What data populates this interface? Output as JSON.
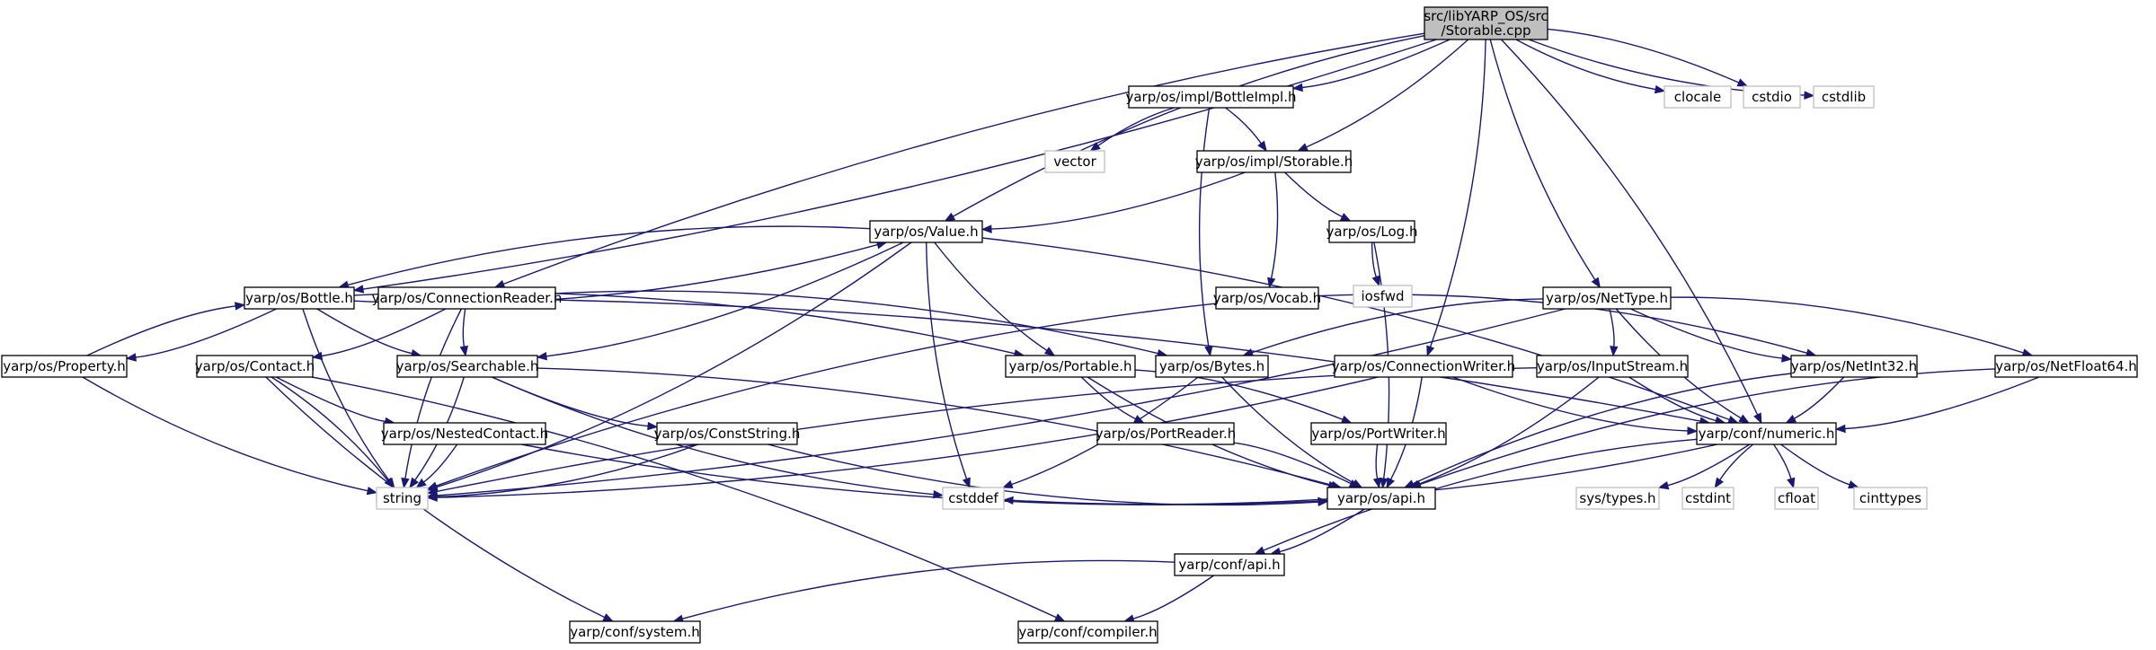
{
  "graph": {
    "nodes": [
      {
        "id": "storable_cpp",
        "lines": [
          "src/libYARP_OS/src",
          "/Storable.cpp"
        ],
        "kind": "root"
      },
      {
        "id": "bottleimpl",
        "lines": [
          "yarp/os/impl/BottleImpl.h"
        ],
        "kind": "file"
      },
      {
        "id": "clocale",
        "lines": [
          "clocale"
        ],
        "kind": "ext"
      },
      {
        "id": "cstdio",
        "lines": [
          "cstdio"
        ],
        "kind": "ext"
      },
      {
        "id": "cstdlib",
        "lines": [
          "cstdlib"
        ],
        "kind": "ext"
      },
      {
        "id": "vector",
        "lines": [
          "vector"
        ],
        "kind": "ext"
      },
      {
        "id": "impl_storable",
        "lines": [
          "yarp/os/impl/Storable.h"
        ],
        "kind": "file"
      },
      {
        "id": "value",
        "lines": [
          "yarp/os/Value.h"
        ],
        "kind": "file"
      },
      {
        "id": "log",
        "lines": [
          "yarp/os/Log.h"
        ],
        "kind": "file"
      },
      {
        "id": "iosfwd",
        "lines": [
          "iosfwd"
        ],
        "kind": "ext"
      },
      {
        "id": "bottle",
        "lines": [
          "yarp/os/Bottle.h"
        ],
        "kind": "file"
      },
      {
        "id": "connreader",
        "lines": [
          "yarp/os/ConnectionReader.h"
        ],
        "kind": "file"
      },
      {
        "id": "vocab",
        "lines": [
          "yarp/os/Vocab.h"
        ],
        "kind": "file"
      },
      {
        "id": "nettype",
        "lines": [
          "yarp/os/NetType.h"
        ],
        "kind": "file"
      },
      {
        "id": "property",
        "lines": [
          "yarp/os/Property.h"
        ],
        "kind": "file"
      },
      {
        "id": "contact",
        "lines": [
          "yarp/os/Contact.h"
        ],
        "kind": "file"
      },
      {
        "id": "searchable",
        "lines": [
          "yarp/os/Searchable.h"
        ],
        "kind": "file"
      },
      {
        "id": "portable",
        "lines": [
          "yarp/os/Portable.h"
        ],
        "kind": "file"
      },
      {
        "id": "bytes",
        "lines": [
          "yarp/os/Bytes.h"
        ],
        "kind": "file"
      },
      {
        "id": "connwriter",
        "lines": [
          "yarp/os/ConnectionWriter.h"
        ],
        "kind": "file"
      },
      {
        "id": "inputstream",
        "lines": [
          "yarp/os/InputStream.h"
        ],
        "kind": "file"
      },
      {
        "id": "netint32",
        "lines": [
          "yarp/os/NetInt32.h"
        ],
        "kind": "file"
      },
      {
        "id": "netfloat64",
        "lines": [
          "yarp/os/NetFloat64.h"
        ],
        "kind": "file"
      },
      {
        "id": "nestedcontact",
        "lines": [
          "yarp/os/NestedContact.h"
        ],
        "kind": "file"
      },
      {
        "id": "conststring",
        "lines": [
          "yarp/os/ConstString.h"
        ],
        "kind": "file"
      },
      {
        "id": "portreader",
        "lines": [
          "yarp/os/PortReader.h"
        ],
        "kind": "file"
      },
      {
        "id": "portwriter",
        "lines": [
          "yarp/os/PortWriter.h"
        ],
        "kind": "file"
      },
      {
        "id": "numeric",
        "lines": [
          "yarp/conf/numeric.h"
        ],
        "kind": "file"
      },
      {
        "id": "string",
        "lines": [
          "string"
        ],
        "kind": "ext"
      },
      {
        "id": "cstddef",
        "lines": [
          "cstddef"
        ],
        "kind": "ext"
      },
      {
        "id": "os_api",
        "lines": [
          "yarp/os/api.h"
        ],
        "kind": "file"
      },
      {
        "id": "systypes",
        "lines": [
          "sys/types.h"
        ],
        "kind": "ext"
      },
      {
        "id": "cstdint",
        "lines": [
          "cstdint"
        ],
        "kind": "ext"
      },
      {
        "id": "cfloat",
        "lines": [
          "cfloat"
        ],
        "kind": "ext"
      },
      {
        "id": "cinttypes",
        "lines": [
          "cinttypes"
        ],
        "kind": "ext"
      },
      {
        "id": "conf_api",
        "lines": [
          "yarp/conf/api.h"
        ],
        "kind": "file"
      },
      {
        "id": "system",
        "lines": [
          "yarp/conf/system.h"
        ],
        "kind": "file"
      },
      {
        "id": "compiler",
        "lines": [
          "yarp/conf/compiler.h"
        ],
        "kind": "file"
      }
    ],
    "edges": [
      [
        "storable_cpp",
        "bottleimpl"
      ],
      [
        "storable_cpp",
        "clocale"
      ],
      [
        "storable_cpp",
        "cstdio"
      ],
      [
        "storable_cpp",
        "cstdlib"
      ],
      [
        "storable_cpp",
        "impl_storable"
      ],
      [
        "storable_cpp",
        "value"
      ],
      [
        "storable_cpp",
        "bottle"
      ],
      [
        "storable_cpp",
        "connreader"
      ],
      [
        "storable_cpp",
        "connwriter"
      ],
      [
        "storable_cpp",
        "nettype"
      ],
      [
        "storable_cpp",
        "numeric"
      ],
      [
        "bottleimpl",
        "vector"
      ],
      [
        "bottleimpl",
        "impl_storable"
      ],
      [
        "bottleimpl",
        "bytes"
      ],
      [
        "impl_storable",
        "value"
      ],
      [
        "impl_storable",
        "log"
      ],
      [
        "impl_storable",
        "vocab"
      ],
      [
        "log",
        "iosfwd"
      ],
      [
        "log",
        "os_api"
      ],
      [
        "value",
        "bottle"
      ],
      [
        "value",
        "searchable"
      ],
      [
        "value",
        "portable"
      ],
      [
        "value",
        "string"
      ],
      [
        "value",
        "cstddef"
      ],
      [
        "value",
        "numeric"
      ],
      [
        "bottle",
        "value"
      ],
      [
        "bottle",
        "property"
      ],
      [
        "bottle",
        "searchable"
      ],
      [
        "bottle",
        "portable"
      ],
      [
        "bottle",
        "string"
      ],
      [
        "property",
        "bottle"
      ],
      [
        "property",
        "string"
      ],
      [
        "connreader",
        "contact"
      ],
      [
        "connreader",
        "searchable"
      ],
      [
        "connreader",
        "bytes"
      ],
      [
        "connreader",
        "string"
      ],
      [
        "connreader",
        "numeric"
      ],
      [
        "vocab",
        "string"
      ],
      [
        "vocab",
        "netint32"
      ],
      [
        "nettype",
        "bytes"
      ],
      [
        "nettype",
        "inputstream"
      ],
      [
        "nettype",
        "netint32"
      ],
      [
        "nettype",
        "netfloat64"
      ],
      [
        "nettype",
        "numeric"
      ],
      [
        "nettype",
        "string"
      ],
      [
        "contact",
        "nestedcontact"
      ],
      [
        "contact",
        "string"
      ],
      [
        "contact",
        "system"
      ],
      [
        "contact",
        "compiler"
      ],
      [
        "searchable",
        "conststring"
      ],
      [
        "searchable",
        "string"
      ],
      [
        "searchable",
        "cstddef"
      ],
      [
        "searchable",
        "os_api"
      ],
      [
        "portable",
        "portreader"
      ],
      [
        "portable",
        "portwriter"
      ],
      [
        "portable",
        "os_api"
      ],
      [
        "bytes",
        "cstddef"
      ],
      [
        "bytes",
        "os_api"
      ],
      [
        "connwriter",
        "os_api"
      ],
      [
        "connwriter",
        "numeric"
      ],
      [
        "connwriter",
        "string"
      ],
      [
        "inputstream",
        "string"
      ],
      [
        "inputstream",
        "os_api"
      ],
      [
        "inputstream",
        "numeric"
      ],
      [
        "netint32",
        "numeric"
      ],
      [
        "netint32",
        "os_api"
      ],
      [
        "netfloat64",
        "numeric"
      ],
      [
        "netfloat64",
        "os_api"
      ],
      [
        "nestedcontact",
        "string"
      ],
      [
        "nestedcontact",
        "os_api"
      ],
      [
        "conststring",
        "string"
      ],
      [
        "conststring",
        "os_api"
      ],
      [
        "portreader",
        "os_api"
      ],
      [
        "portwriter",
        "os_api"
      ],
      [
        "numeric",
        "systypes"
      ],
      [
        "numeric",
        "cstdint"
      ],
      [
        "numeric",
        "cfloat"
      ],
      [
        "numeric",
        "cinttypes"
      ],
      [
        "numeric",
        "cstddef"
      ],
      [
        "numeric",
        "conf_api"
      ],
      [
        "os_api",
        "conf_api"
      ],
      [
        "conf_api",
        "system"
      ],
      [
        "conf_api",
        "compiler"
      ]
    ]
  }
}
